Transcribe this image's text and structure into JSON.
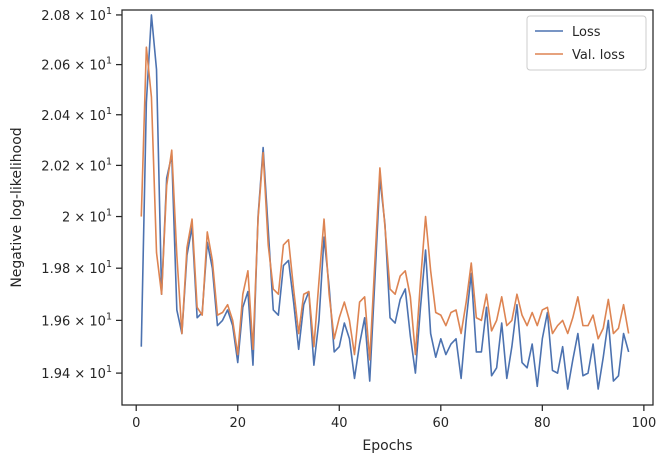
{
  "chart_data": {
    "type": "line",
    "title": "",
    "xlabel": "Epochs",
    "ylabel": "Negative log-likelihood",
    "xlim": [
      -2.8,
      101.8
    ],
    "ylim": [
      19.28,
      20.82
    ],
    "yscale": "log",
    "xticks": [
      0,
      20,
      40,
      60,
      80,
      100
    ],
    "xtick_labels": [
      "0",
      "20",
      "40",
      "60",
      "80",
      "100"
    ],
    "yticks": [
      19.4,
      19.6,
      19.8,
      20.0,
      20.2,
      20.4,
      20.6,
      20.8
    ],
    "ytick_labels": [
      {
        "mantissa": "1.94",
        "exp": "1"
      },
      {
        "mantissa": "1.96",
        "exp": "1"
      },
      {
        "mantissa": "1.98",
        "exp": "1"
      },
      {
        "mantissa": "2",
        "exp": "1"
      },
      {
        "mantissa": "2.02",
        "exp": "1"
      },
      {
        "mantissa": "2.04",
        "exp": "1"
      },
      {
        "mantissa": "2.06",
        "exp": "1"
      },
      {
        "mantissa": "2.08",
        "exp": "1"
      }
    ],
    "grid": false,
    "legend_position": "top-right",
    "x": [
      1,
      2,
      3,
      4,
      5,
      6,
      7,
      8,
      9,
      10,
      11,
      12,
      13,
      14,
      15,
      16,
      17,
      18,
      19,
      20,
      21,
      22,
      23,
      24,
      25,
      26,
      27,
      28,
      29,
      30,
      31,
      32,
      33,
      34,
      35,
      36,
      37,
      38,
      39,
      40,
      41,
      42,
      43,
      44,
      45,
      46,
      47,
      48,
      49,
      50,
      51,
      52,
      53,
      54,
      55,
      56,
      57,
      58,
      59,
      60,
      61,
      62,
      63,
      64,
      65,
      66,
      67,
      68,
      69,
      70,
      71,
      72,
      73,
      74,
      75,
      76,
      77,
      78,
      79,
      80,
      81,
      82,
      83,
      84,
      85,
      86,
      87,
      88,
      89,
      90,
      91,
      92,
      93,
      94,
      95,
      96,
      97
    ],
    "series": [
      {
        "name": "Loss",
        "color": "#4c72b0",
        "values": [
          19.5,
          20.45,
          20.8,
          20.58,
          19.7,
          20.15,
          20.24,
          19.64,
          19.55,
          19.85,
          19.96,
          19.61,
          19.63,
          19.9,
          19.8,
          19.58,
          19.6,
          19.64,
          19.58,
          19.44,
          19.65,
          19.71,
          19.43,
          20.0,
          20.27,
          19.95,
          19.64,
          19.62,
          19.81,
          19.83,
          19.67,
          19.49,
          19.66,
          19.71,
          19.43,
          19.6,
          19.92,
          19.73,
          19.48,
          19.5,
          19.59,
          19.53,
          19.38,
          19.51,
          19.61,
          19.37,
          19.75,
          20.15,
          19.97,
          19.61,
          19.59,
          19.68,
          19.72,
          19.54,
          19.4,
          19.65,
          19.87,
          19.55,
          19.46,
          19.53,
          19.47,
          19.51,
          19.53,
          19.38,
          19.6,
          19.78,
          19.48,
          19.48,
          19.65,
          19.39,
          19.42,
          19.59,
          19.38,
          19.5,
          19.66,
          19.44,
          19.42,
          19.51,
          19.35,
          19.53,
          19.63,
          19.41,
          19.4,
          19.5,
          19.34,
          19.45,
          19.55,
          19.39,
          19.4,
          19.51,
          19.34,
          19.46,
          19.6,
          19.37,
          19.39,
          19.55,
          19.48
        ]
      },
      {
        "name": "Val. loss",
        "color": "#dd8452",
        "values": [
          20.0,
          20.67,
          20.47,
          19.86,
          19.7,
          20.12,
          20.26,
          19.85,
          19.55,
          19.88,
          19.99,
          19.65,
          19.62,
          19.94,
          19.83,
          19.62,
          19.63,
          19.66,
          19.6,
          19.47,
          19.7,
          19.79,
          19.49,
          19.99,
          20.25,
          19.89,
          19.72,
          19.7,
          19.89,
          19.91,
          19.72,
          19.55,
          19.7,
          19.71,
          19.5,
          19.75,
          19.99,
          19.7,
          19.53,
          19.61,
          19.67,
          19.6,
          19.47,
          19.67,
          19.69,
          19.45,
          19.82,
          20.19,
          19.96,
          19.72,
          19.7,
          19.77,
          19.79,
          19.69,
          19.47,
          19.75,
          20.0,
          19.79,
          19.63,
          19.62,
          19.58,
          19.63,
          19.64,
          19.55,
          19.67,
          19.82,
          19.61,
          19.6,
          19.7,
          19.56,
          19.6,
          19.69,
          19.58,
          19.6,
          19.7,
          19.62,
          19.58,
          19.63,
          19.58,
          19.64,
          19.65,
          19.55,
          19.58,
          19.6,
          19.55,
          19.61,
          19.69,
          19.58,
          19.58,
          19.62,
          19.53,
          19.57,
          19.68,
          19.55,
          19.57,
          19.66,
          19.55
        ]
      }
    ]
  }
}
